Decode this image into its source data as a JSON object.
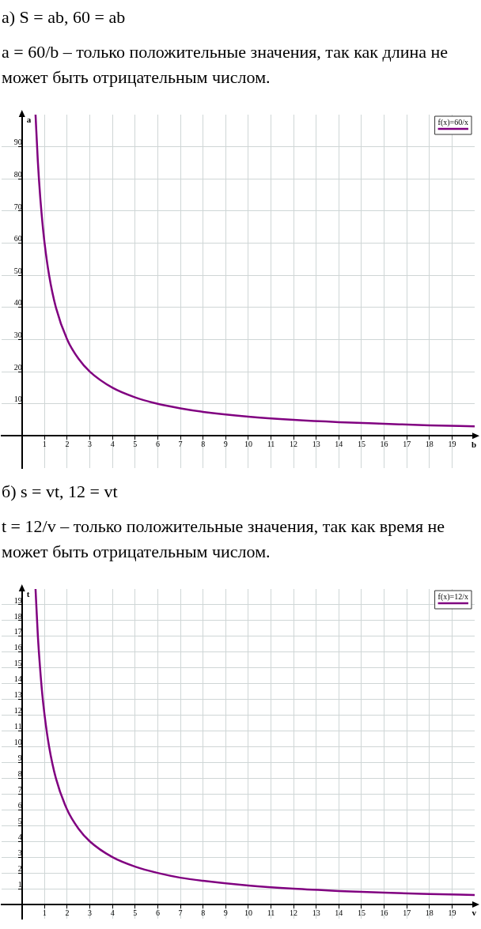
{
  "chart_data": [
    {
      "type": "line",
      "title": "а) S = ab,     60 = ab",
      "subtitle": "a = 60/b – только положительные значения, так как длина не может быть отрицательным числом.",
      "xlabel": "b",
      "ylabel": "a",
      "x": [
        0.6,
        0.7,
        0.8,
        0.9,
        1,
        1.2,
        1.5,
        2,
        2.5,
        3,
        4,
        5,
        6,
        7,
        8,
        10,
        12,
        14,
        16,
        18,
        20
      ],
      "series": [
        {
          "name": "f(x)=60/x",
          "color": "#800080",
          "values": [
            100,
            85.7,
            75,
            66.7,
            60,
            50,
            40,
            30,
            24,
            20,
            15,
            12,
            10,
            8.6,
            7.5,
            6,
            5,
            4.3,
            3.8,
            3.3,
            3
          ]
        }
      ],
      "xlim": [
        -0.9,
        20
      ],
      "ylim": [
        -10,
        100
      ],
      "xticks": [
        1,
        2,
        3,
        4,
        5,
        6,
        7,
        8,
        9,
        10,
        11,
        12,
        13,
        14,
        15,
        16,
        17,
        18,
        19
      ],
      "yticks": [
        10,
        20,
        30,
        40,
        50,
        60,
        70,
        80,
        90
      ],
      "grid": true,
      "legend": "top right",
      "marker": "none",
      "line_style": "solid"
    },
    {
      "type": "line",
      "title": "б) s = vt,     12 = vt",
      "subtitle": "t = 12/v – только положительные значения, так как время не может быть отрицательным числом.",
      "xlabel": "v",
      "ylabel": "t",
      "x": [
        0.6,
        0.7,
        0.8,
        0.9,
        1,
        1.2,
        1.5,
        2,
        2.5,
        3,
        4,
        5,
        6,
        7,
        8,
        10,
        12,
        14,
        16,
        18,
        20
      ],
      "series": [
        {
          "name": "f(x)=12/x",
          "color": "#800080",
          "values": [
            20,
            17.1,
            15,
            13.3,
            12,
            10,
            8,
            6,
            4.8,
            4,
            3,
            2.4,
            2,
            1.7,
            1.5,
            1.2,
            1,
            0.86,
            0.75,
            0.67,
            0.6
          ]
        }
      ],
      "xlim": [
        -0.9,
        20
      ],
      "ylim": [
        -0.9,
        20
      ],
      "xticks": [
        1,
        2,
        3,
        4,
        5,
        6,
        7,
        8,
        9,
        10,
        11,
        12,
        13,
        14,
        15,
        16,
        17,
        18,
        19
      ],
      "yticks": [
        1,
        2,
        3,
        4,
        5,
        6,
        7,
        8,
        9,
        10,
        11,
        12,
        13,
        14,
        15,
        16,
        17,
        18,
        19
      ],
      "grid": true,
      "legend": "top right",
      "marker": "none",
      "line_style": "solid"
    }
  ]
}
